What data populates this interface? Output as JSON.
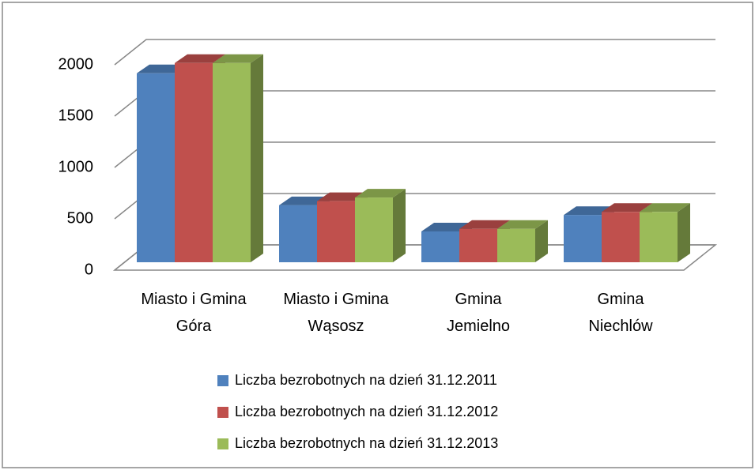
{
  "chart_data": {
    "type": "bar3d",
    "categories": [
      "Miasto i Gmina Góra",
      "Miasto i Gmina Wąsosz",
      "Gmina Jemielno",
      "Gmina Niechlów"
    ],
    "series": [
      {
        "name": "Liczba bezrobotnych na dzień 31.12.2011",
        "color": "#4f81bd",
        "values": [
          1840,
          555,
          300,
          460
        ]
      },
      {
        "name": "Liczba bezrobotnych na dzień 31.12.2012",
        "color": "#c0504d",
        "values": [
          1940,
          595,
          325,
          490
        ]
      },
      {
        "name": "Liczba bezrobotnych na dzień 31.12.2013",
        "color": "#9bbb59",
        "values": [
          1940,
          630,
          325,
          490
        ]
      }
    ],
    "ylim": [
      0,
      2000
    ],
    "yticks": [
      0,
      500,
      1000,
      1500,
      2000
    ],
    "grid": true,
    "legend": "bottom"
  }
}
